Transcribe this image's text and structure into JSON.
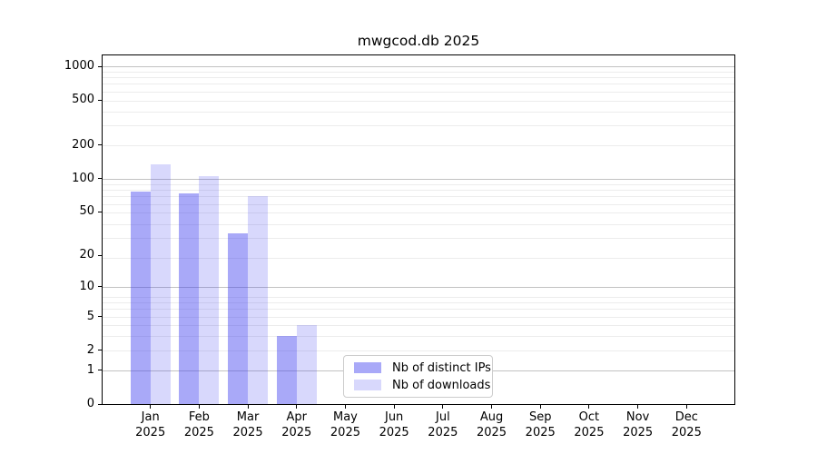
{
  "chart_data": {
    "type": "bar",
    "title": "mwgcod.db 2025",
    "categories": [
      "Jan",
      "Feb",
      "Mar",
      "Apr",
      "May",
      "Jun",
      "Jul",
      "Aug",
      "Sep",
      "Oct",
      "Nov",
      "Dec"
    ],
    "category_year": "2025",
    "series": [
      {
        "name": "Nb of distinct IPs",
        "color": "rgba(60,60,240,0.44)",
        "solid_hex": "#aaaaf8",
        "values": [
          76,
          74,
          32,
          3,
          null,
          null,
          null,
          null,
          null,
          null,
          null,
          null
        ]
      },
      {
        "name": "Nb of downloads",
        "color": "rgba(60,60,240,0.20)",
        "solid_hex": "#d9d9f8",
        "values": [
          135,
          106,
          70,
          4,
          null,
          null,
          null,
          null,
          null,
          null,
          null,
          null
        ]
      }
    ],
    "y_axis": {
      "scale": "log10(1+v)",
      "range": [
        0,
        1000
      ],
      "tick_labels": [
        "0",
        "1",
        "2",
        "5",
        "10",
        "20",
        "50",
        "100",
        "200",
        "500",
        "1000"
      ],
      "tick_values": [
        0,
        1,
        2,
        5,
        10,
        20,
        50,
        100,
        200,
        500,
        1000
      ],
      "major_gridline_values": [
        1,
        10,
        100,
        1000
      ],
      "minor_gridline_values": [
        2,
        3,
        4,
        5,
        6,
        7,
        8,
        19,
        29,
        39,
        49,
        59,
        69,
        79,
        89,
        199,
        299,
        399,
        499,
        599,
        699,
        799,
        899
      ]
    },
    "xlabel": "",
    "ylabel": "",
    "grid": true,
    "legend_position": "inside-bottom-center",
    "colors": {
      "major_grid": "#c2c2c2",
      "minor_grid": "#ececec",
      "frame": "#000000",
      "background": "#ffffff"
    }
  }
}
